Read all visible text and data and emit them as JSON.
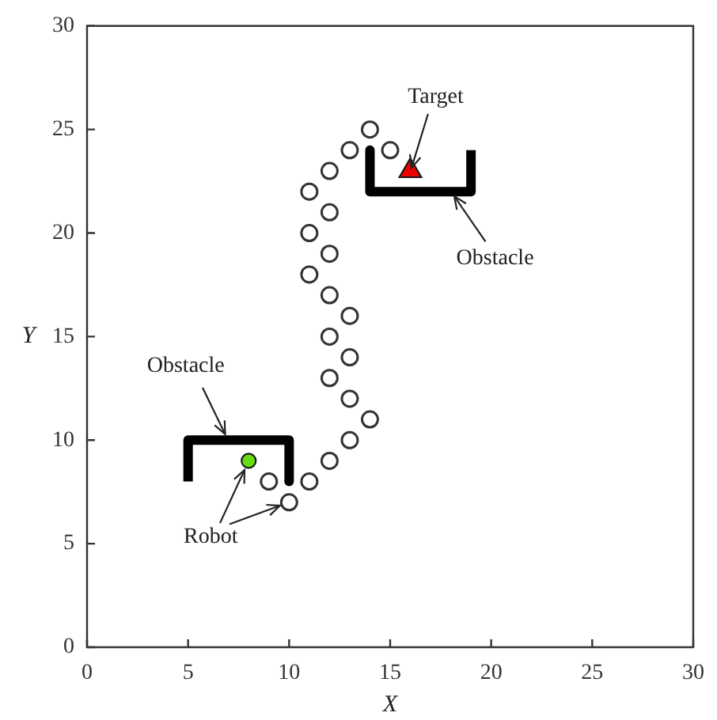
{
  "chart_data": {
    "type": "scatter",
    "xlabel": "X",
    "ylabel": "Y",
    "xlim": [
      0,
      30
    ],
    "ylim": [
      0,
      30
    ],
    "xticks": [
      0,
      5,
      10,
      15,
      20,
      25,
      30
    ],
    "yticks": [
      0,
      5,
      10,
      15,
      20,
      25,
      30
    ],
    "series": [
      {
        "type": "scatter",
        "marker": "circle",
        "color": "#333333",
        "x": [
          9,
          10,
          11,
          12,
          13,
          14,
          13,
          12,
          13,
          12,
          13,
          12,
          11,
          12,
          11,
          12,
          11,
          12,
          13,
          14,
          15
        ],
        "values": [
          8,
          7,
          8,
          9,
          10,
          11,
          12,
          13,
          14,
          15,
          16,
          17,
          18,
          19,
          20,
          21,
          22,
          23,
          24,
          25,
          24
        ]
      },
      {
        "type": "scatter",
        "marker": "circle",
        "color": "#66dd11",
        "x": [
          8
        ],
        "values": [
          9
        ]
      },
      {
        "type": "scatter",
        "marker": "triangle",
        "color": "#ee0000",
        "x": [
          16
        ],
        "values": [
          23
        ]
      },
      {
        "type": "line",
        "marker": "none",
        "line_style": "solid",
        "color": "#000000",
        "x": [
          5,
          5,
          10,
          10
        ],
        "values": [
          8,
          10,
          10,
          8
        ]
      },
      {
        "type": "line",
        "marker": "none",
        "line_style": "solid",
        "color": "#000000",
        "x": [
          14,
          14,
          19,
          19
        ],
        "values": [
          24,
          22,
          22,
          24
        ]
      }
    ],
    "annotations": [
      {
        "text": "Target",
        "x": 16,
        "y": 23
      },
      {
        "text": "Obstacle",
        "x": 18,
        "y": 22
      },
      {
        "text": "Obstacle",
        "x": 7,
        "y": 10
      },
      {
        "text": "Robot",
        "x": 8,
        "y": 9
      }
    ]
  }
}
